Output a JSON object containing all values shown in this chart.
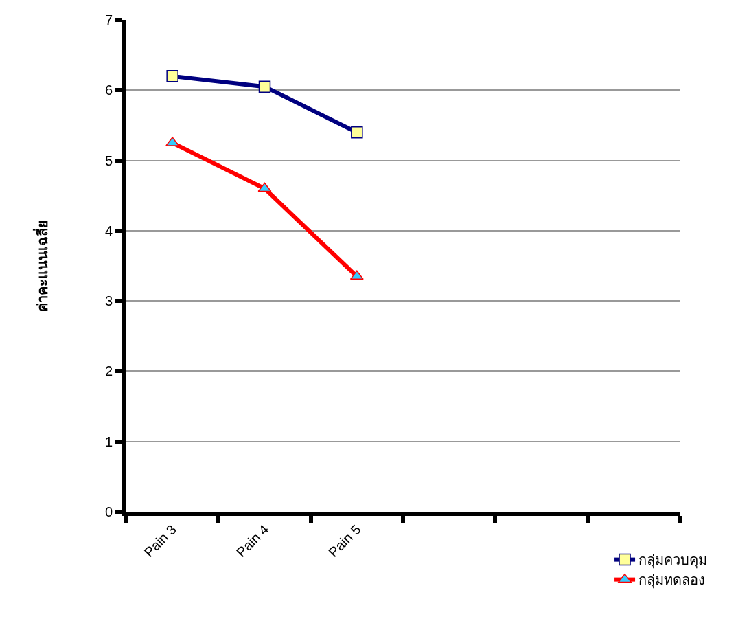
{
  "chart_data": {
    "type": "line",
    "ylabel": "ค่าคะแนนเฉลี่ย",
    "categories": [
      "Pain 3",
      "Pain 4",
      "Pain 5",
      null,
      null,
      null
    ],
    "series": [
      {
        "name": "กลุ่มควบคุม",
        "color": "#000080",
        "marker": "square",
        "values": [
          6.2,
          6.05,
          5.4,
          null,
          null,
          null
        ]
      },
      {
        "name": "กลุ่มทดลอง",
        "color": "#ff0000",
        "marker": "triangle",
        "values": [
          5.25,
          4.6,
          3.35,
          null,
          null,
          null
        ]
      }
    ],
    "ylim": [
      0,
      7
    ],
    "yticks": [
      0,
      1,
      2,
      3,
      4,
      5,
      6,
      7
    ],
    "grid": "y",
    "legend": "bottom right",
    "line_style": "solid"
  }
}
